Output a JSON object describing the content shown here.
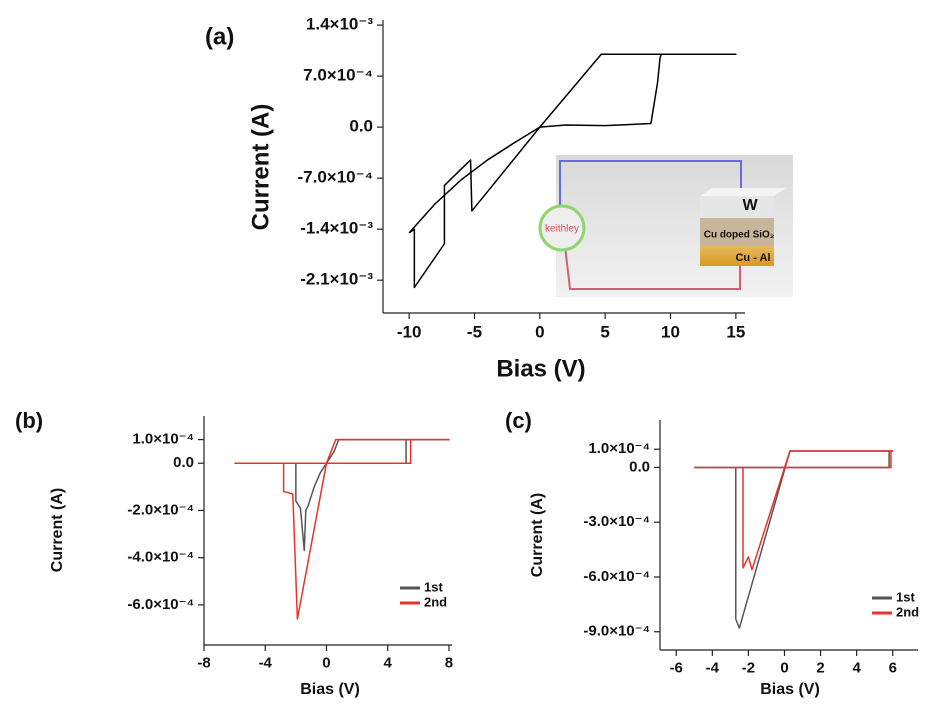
{
  "chart_data": [
    {
      "type": "line",
      "title": "(a)",
      "xlabel": "Bias (V)",
      "ylabel": "Current (A)",
      "xlim": [
        -12,
        15.7
      ],
      "ylim": [
        -0.00255,
        0.00147
      ],
      "xticks": [
        -10,
        -5,
        0,
        5,
        10,
        15
      ],
      "yticks": [
        {
          "value": 0.0014,
          "label": "1.4×10⁻³"
        },
        {
          "value": 0.0007,
          "label": "7.0×10⁻⁴"
        },
        {
          "value": 0,
          "label": "0.0"
        },
        {
          "value": -0.0007,
          "label": "-7.0×10⁻⁴"
        },
        {
          "value": -0.0014,
          "label": "-1.4×10⁻³"
        },
        {
          "value": -0.0021,
          "label": "-2.1×10⁻³"
        }
      ],
      "series": [
        {
          "color": "#000000",
          "x": [
            -10.0,
            -8,
            -6,
            -4,
            -2,
            0,
            2,
            5,
            8.5,
            9.0,
            9.2,
            9.3,
            15,
            4.7,
            0,
            -5.2,
            -5.3,
            -7.3,
            -7.3,
            -9.6,
            -9.6,
            -10.0
          ],
          "values": [
            -0.00145,
            -0.00105,
            -0.00072,
            -0.00045,
            -0.00022,
            0,
            3e-05,
            2e-05,
            5e-05,
            0.0006,
            0.00095,
            0.001,
            0.001,
            0.001,
            0,
            -0.00115,
            -0.00045,
            -0.0008,
            -0.0016,
            -0.0022,
            -0.0014,
            -0.00145
          ]
        }
      ],
      "annotations": [
        "keithley",
        "W",
        "Cu doped SiO₂",
        "Cu - Al"
      ]
    },
    {
      "type": "line",
      "title": "(b)",
      "xlabel": "Bias (V)",
      "ylabel": "Current (A)",
      "xlim": [
        -8,
        8.2
      ],
      "ylim": [
        -0.00077,
        0.0002
      ],
      "xticks": [
        -8,
        -4,
        0,
        4,
        8
      ],
      "yticks": [
        {
          "value": 0.0001,
          "label": "1.0×10⁻⁴"
        },
        {
          "value": 0,
          "label": "0.0"
        },
        {
          "value": -0.0002,
          "label": "-2.0×10⁻⁴"
        },
        {
          "value": -0.0004,
          "label": "-4.0×10⁻⁴"
        },
        {
          "value": -0.0006,
          "label": "-6.0×10⁻⁴"
        }
      ],
      "series": [
        {
          "name": "1st",
          "color": "#555555",
          "x": [
            -6,
            -2.0,
            -2.0,
            -1.7,
            -1.45,
            -1.35,
            -1.2,
            -0.8,
            -0.4,
            0,
            0.5,
            0.8,
            8,
            5.2,
            5.2,
            -6
          ],
          "values": [
            0,
            0,
            -0.00016,
            -0.00019,
            -0.00037,
            -0.0002,
            -0.00018,
            -0.0001,
            -4e-05,
            0,
            5e-05,
            0.0001,
            0.0001,
            0.0001,
            0,
            0
          ]
        },
        {
          "name": "2nd",
          "color": "#e8332a",
          "x": [
            -6,
            -2.8,
            -2.8,
            -2.2,
            -1.9,
            0,
            0.6,
            8,
            5.5,
            5.5,
            -6
          ],
          "values": [
            0,
            0,
            -0.00012,
            -0.00013,
            -0.00066,
            0,
            0.0001,
            0.0001,
            0.0001,
            0,
            0
          ]
        }
      ]
    },
    {
      "type": "line",
      "title": "(c)",
      "xlabel": "Bias (V)",
      "ylabel": "Current (A)",
      "xlim": [
        -6.9,
        7.4
      ],
      "ylim": [
        -0.001,
        0.00026
      ],
      "xticks": [
        -6,
        -4,
        -2,
        0,
        2,
        4,
        6
      ],
      "yticks": [
        {
          "value": 0.0001,
          "label": "1.0×10⁻⁴"
        },
        {
          "value": 0,
          "label": "0.0"
        },
        {
          "value": -0.0003,
          "label": "-3.0×10⁻⁴"
        },
        {
          "value": -0.0006,
          "label": "-6.0×10⁻⁴"
        },
        {
          "value": -0.0009,
          "label": "-9.0×10⁻⁴"
        }
      ],
      "series": [
        {
          "name": "1st",
          "color": "#555555",
          "x": [
            -5,
            -2.7,
            -2.7,
            -2.5,
            0.3,
            6,
            5.8,
            5.8,
            -5
          ],
          "values": [
            0,
            0,
            -0.00083,
            -0.00088,
            9e-05,
            9e-05,
            9e-05,
            0,
            0
          ]
        },
        {
          "name": "2nd",
          "color": "#e8332a",
          "x": [
            -5,
            -2.3,
            -2.3,
            -2.0,
            -1.8,
            0.3,
            6,
            5.9,
            5.9,
            -5
          ],
          "values": [
            0,
            0,
            -0.00055,
            -0.00049,
            -0.00056,
            9e-05,
            9e-05,
            9e-05,
            0,
            0
          ]
        }
      ]
    }
  ]
}
